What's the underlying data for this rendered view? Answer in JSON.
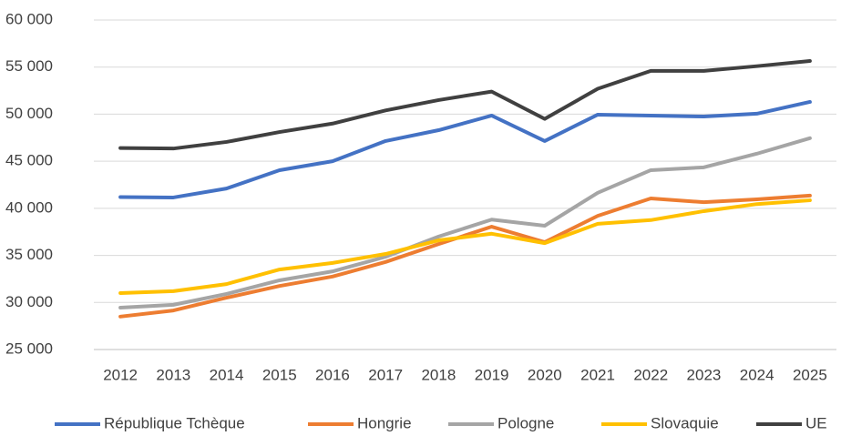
{
  "chart_data": {
    "type": "line",
    "categories": [
      "2012",
      "2013",
      "2014",
      "2015",
      "2016",
      "2017",
      "2018",
      "2019",
      "2020",
      "2021",
      "2022",
      "2023",
      "2024",
      "2025"
    ],
    "series": [
      {
        "name": "République Tchèque",
        "color": "#4472c4",
        "values": [
          41200,
          41150,
          42100,
          44050,
          45000,
          47150,
          48300,
          49850,
          47150,
          49950,
          49850,
          49750,
          50050,
          51300
        ]
      },
      {
        "name": "Hongrie",
        "color": "#ed7d31",
        "values": [
          28500,
          29150,
          30500,
          31750,
          32750,
          34300,
          36200,
          38050,
          36400,
          39200,
          41050,
          40650,
          40950,
          41350
        ]
      },
      {
        "name": "Pologne",
        "color": "#a5a5a5",
        "values": [
          29450,
          29750,
          30900,
          32350,
          33300,
          34850,
          37000,
          38800,
          38150,
          41650,
          44050,
          44350,
          45800,
          47450
        ]
      },
      {
        "name": "Slovaquie",
        "color": "#ffc000",
        "values": [
          31000,
          31200,
          31950,
          33500,
          34200,
          35150,
          36600,
          37300,
          36300,
          38350,
          38750,
          39700,
          40450,
          40850
        ]
      },
      {
        "name": "UE",
        "color": "#404040",
        "values": [
          46400,
          46350,
          47050,
          48100,
          49000,
          50400,
          51500,
          52400,
          49500,
          52700,
          54600,
          54600,
          55100,
          55650
        ]
      }
    ],
    "ylim": [
      25000,
      60000
    ],
    "yticks": [
      {
        "value": 25000,
        "label": "25 000"
      },
      {
        "value": 30000,
        "label": "30 000"
      },
      {
        "value": 35000,
        "label": "35 000"
      },
      {
        "value": 40000,
        "label": "40 000"
      },
      {
        "value": 45000,
        "label": "45 000"
      },
      {
        "value": 50000,
        "label": "50 000"
      },
      {
        "value": 55000,
        "label": "55 000"
      },
      {
        "value": 60000,
        "label": "60 000"
      }
    ],
    "grid": true,
    "legend": "bottom"
  }
}
